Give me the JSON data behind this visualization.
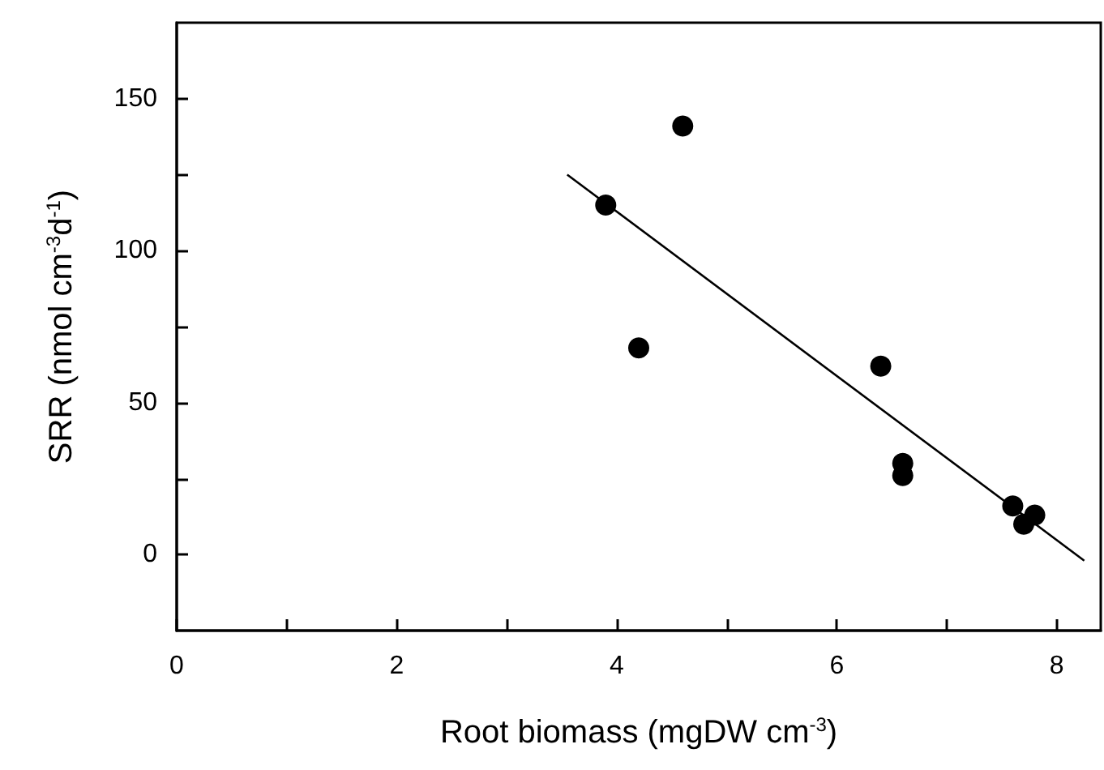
{
  "chart_data": {
    "type": "scatter",
    "xlabel": "Root biomass (mgDW cm$^{-3}$)",
    "ylabel": "SRR (nmol cm$^{-3}$d$^{-1}$)",
    "xlim": [
      0,
      8.4
    ],
    "ylim": [
      -25,
      175
    ],
    "xticks": [
      0,
      {
        "value": 1,
        "label": null
      },
      2,
      {
        "value": 3,
        "label": null
      },
      4,
      {
        "value": 5,
        "label": null
      },
      6,
      {
        "value": 7,
        "label": null
      },
      8
    ],
    "yticks": [
      0,
      {
        "value": 25,
        "label": null
      },
      50,
      {
        "value": 75,
        "label": null
      },
      100,
      {
        "value": 125,
        "label": null
      },
      150
    ],
    "grid": false,
    "marker": "circle",
    "series": [
      {
        "color": "#000000",
        "x": [
          3.9,
          4.6,
          4.2,
          6.4,
          6.6,
          6.6,
          7.6,
          7.7,
          7.8
        ],
        "values": [
          115,
          141,
          68,
          62,
          30,
          26,
          16,
          10,
          13
        ]
      },
      {
        "type": "line",
        "color": "#000000",
        "marker": "none",
        "x": [
          3.55,
          8.25
        ],
        "values": [
          125,
          -2
        ]
      }
    ]
  }
}
